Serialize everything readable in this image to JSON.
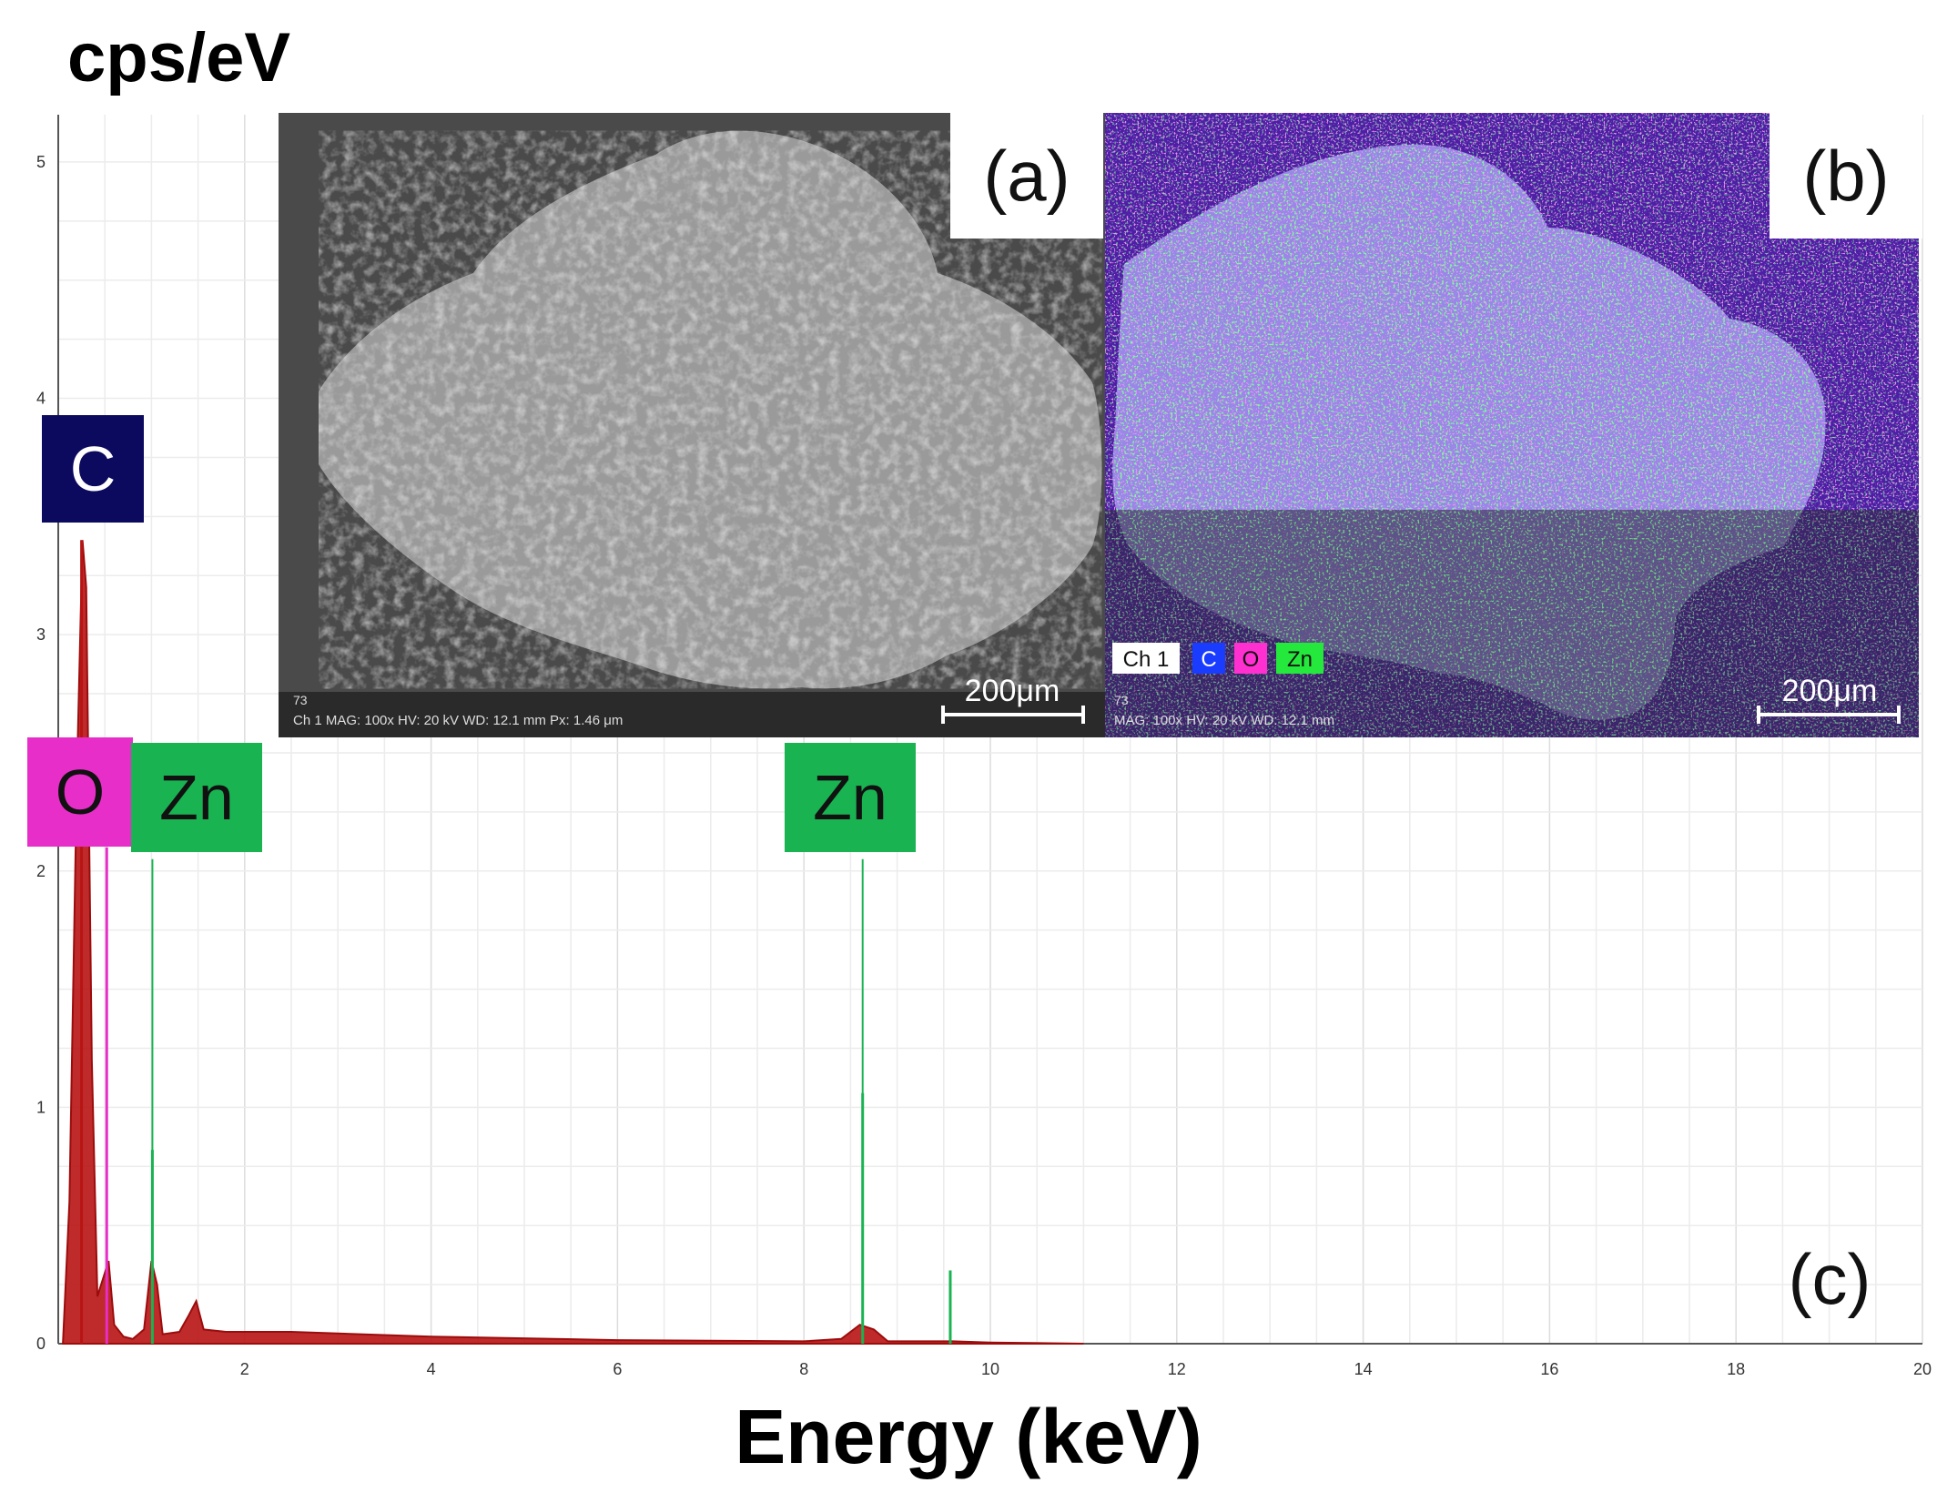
{
  "chart_data": {
    "type": "line",
    "ylabel": "cps/eV",
    "xlabel": "Energy (keV)",
    "xlim": [
      0,
      20
    ],
    "ylim": [
      0,
      5.2
    ],
    "x_ticks": [
      "2",
      "4",
      "6",
      "8",
      "10",
      "12",
      "14",
      "16",
      "18",
      "20"
    ],
    "y_ticks": [
      "0",
      "1",
      "2",
      "3",
      "4",
      "5"
    ],
    "grid": true,
    "element_labels": [
      {
        "label": "C",
        "energy": 0.28,
        "color": "#0b0a5e"
      },
      {
        "label": "O",
        "energy": 0.52,
        "color": "#e82ec8"
      },
      {
        "label": "Zn",
        "energy": 1.01,
        "color": "#19b352"
      },
      {
        "label": "Zn",
        "energy": 8.63,
        "color": "#19b352"
      }
    ],
    "series": [
      {
        "color": "#b81414",
        "points": [
          [
            0.05,
            0.0
          ],
          [
            0.12,
            0.6
          ],
          [
            0.2,
            2.4
          ],
          [
            0.26,
            3.4
          ],
          [
            0.3,
            3.2
          ],
          [
            0.36,
            1.2
          ],
          [
            0.42,
            0.2
          ],
          [
            0.5,
            0.3
          ],
          [
            0.54,
            0.35
          ],
          [
            0.6,
            0.08
          ],
          [
            0.7,
            0.03
          ],
          [
            0.8,
            0.02
          ],
          [
            0.92,
            0.06
          ],
          [
            1.0,
            0.35
          ],
          [
            1.06,
            0.25
          ],
          [
            1.12,
            0.04
          ],
          [
            1.3,
            0.05
          ],
          [
            1.4,
            0.12
          ],
          [
            1.48,
            0.18
          ],
          [
            1.56,
            0.06
          ],
          [
            1.8,
            0.05
          ],
          [
            2.5,
            0.05
          ],
          [
            4,
            0.03
          ],
          [
            6,
            0.015
          ],
          [
            8,
            0.01
          ],
          [
            8.4,
            0.02
          ],
          [
            8.6,
            0.08
          ],
          [
            8.75,
            0.06
          ],
          [
            8.9,
            0.01
          ],
          [
            9.6,
            0.01
          ],
          [
            10,
            0.005
          ],
          [
            11,
            0.0
          ]
        ]
      }
    ],
    "element_lines": [
      {
        "label": "C",
        "energy": 0.25,
        "height": 3.4,
        "color": "#b81414"
      },
      {
        "label": "O",
        "energy": 0.52,
        "height": 2.1,
        "color": "#e82ec8"
      },
      {
        "label": "Zn",
        "energy": 1.01,
        "height": 0.82,
        "color": "#19b352"
      },
      {
        "label": "Zn",
        "energy": 8.63,
        "height": 1.06,
        "color": "#19b352"
      },
      {
        "label": "Zn",
        "energy": 9.57,
        "height": 0.31,
        "color": "#19b352"
      }
    ]
  },
  "insets": {
    "a": {
      "letter": "(a)",
      "scale_bar": "200μm",
      "footer": "Ch 1   MAG: 100x   HV: 20 kV   WD: 12.1 mm   Px: 1.46 μm",
      "footer_top": "73"
    },
    "b": {
      "letter": "(b)",
      "scale_bar": "200μm",
      "footer": "MAG: 100x   HV: 20 kV   WD: 12.1 mm",
      "footer_top": "73",
      "legend": [
        "Ch 1",
        "C",
        "O",
        "Zn"
      ],
      "legend_colors": [
        "#ffffff",
        "#1a3cff",
        "#ff2fd0",
        "#24e83c"
      ]
    }
  },
  "panel_c_letter": "(c)"
}
